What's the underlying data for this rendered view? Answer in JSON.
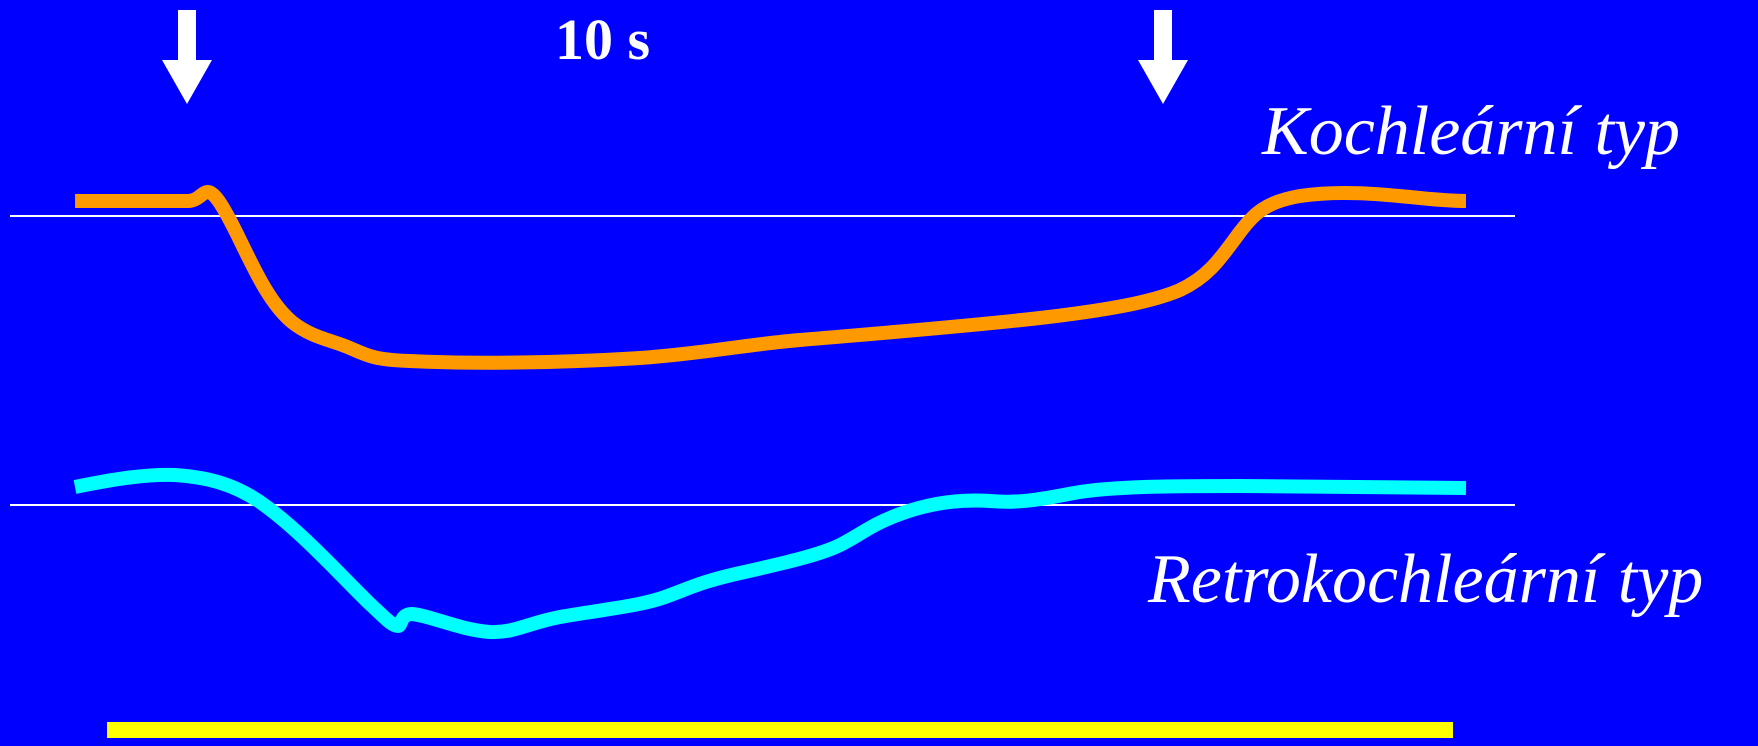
{
  "duration_label": "10 s",
  "curves": {
    "cochlear": {
      "label": "Kochleární typ",
      "color": "#ff9900"
    },
    "retrocochlear": {
      "label": "Retrokochleární typ",
      "color": "#00ffff"
    }
  },
  "markers": {
    "start_arrow_icon": "down-arrow-icon",
    "end_arrow_icon": "down-arrow-icon",
    "arrow_color": "#ffffff"
  },
  "stimulus_bar_color": "#ffff00",
  "background_color": "#0000ff",
  "baseline_color": "#ffffff"
}
